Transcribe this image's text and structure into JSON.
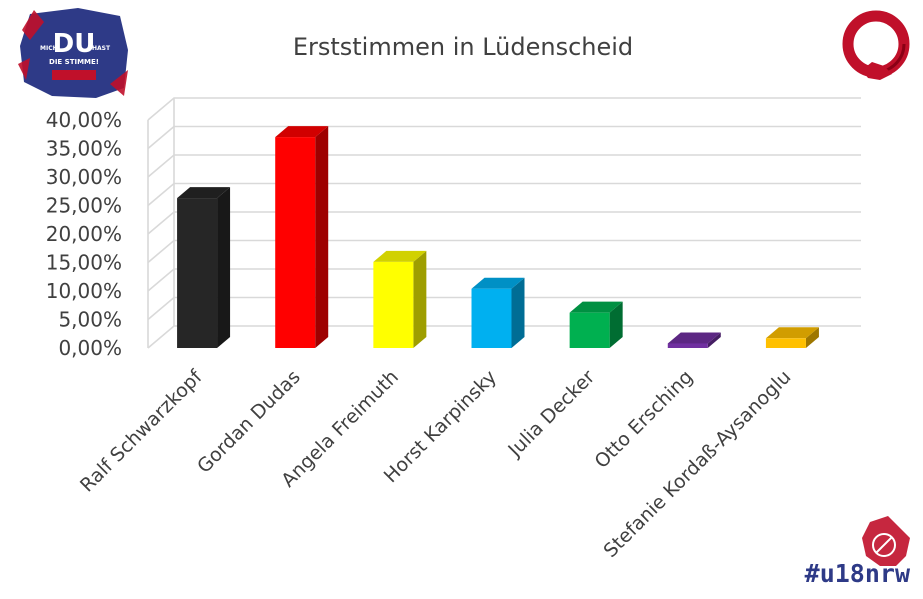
{
  "logos": {
    "top_left": {
      "big_text": "DU",
      "left_text": "MICH",
      "right_text": "HAST",
      "bottom_text": "DIE STIMME!"
    },
    "bottom_right_hashtag": "#u18nrw"
  },
  "colors": {
    "grid": "#d9d9d9",
    "text": "#404040",
    "logo_blue": "#2e3a87",
    "logo_red": "#c0102a"
  },
  "chart_data": {
    "type": "bar",
    "title": "Erststimmen in Lüdenscheid",
    "xlabel": "",
    "ylabel": "",
    "ylim": [
      0,
      40
    ],
    "yticks": [
      "0,00%",
      "5,00%",
      "10,00%",
      "15,00%",
      "20,00%",
      "25,00%",
      "30,00%",
      "35,00%",
      "40,00%"
    ],
    "grid": true,
    "legend": "none",
    "categories": [
      "Ralf Schwarzkopf",
      "Gordan Dudas",
      "Angela Freimuth",
      "Horst Karpinsky",
      "Julia Decker",
      "Otto Ersching",
      "Stefanie Kordaß-Aysanoglu"
    ],
    "values": [
      26.3,
      37.0,
      15.1,
      10.4,
      6.2,
      0.8,
      1.7
    ],
    "bar_colors": [
      "#262626",
      "#ff0000",
      "#ffff00",
      "#00b0f0",
      "#00b050",
      "#7030a0",
      "#ffc000"
    ]
  }
}
